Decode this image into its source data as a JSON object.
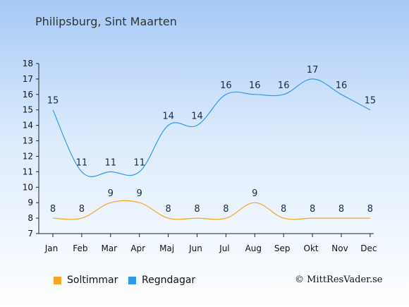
{
  "title": "Philipsburg, Sint Maarten",
  "copyright": "© MittResVader.se",
  "legend": [
    {
      "label": "Soltimmar",
      "color": "#f5a623"
    },
    {
      "label": "Regndagar",
      "color": "#3399e6"
    }
  ],
  "chart_data": {
    "type": "line",
    "categories": [
      "Jan",
      "Feb",
      "Mar",
      "Apr",
      "Maj",
      "Jun",
      "Jul",
      "Aug",
      "Sep",
      "Okt",
      "Nov",
      "Dec"
    ],
    "ylim": [
      7,
      18
    ],
    "yticks": [
      7,
      8,
      9,
      10,
      11,
      12,
      13,
      14,
      15,
      16,
      17,
      18
    ],
    "series": [
      {
        "name": "Regndagar",
        "color": "#3399e6",
        "values": [
          15,
          11,
          11,
          11,
          14,
          14,
          16,
          16,
          16,
          17,
          16,
          15
        ]
      },
      {
        "name": "Soltimmar",
        "color": "#f5a623",
        "values": [
          8,
          8,
          9,
          9,
          8,
          8,
          8,
          9,
          8,
          8,
          8,
          8
        ]
      }
    ]
  }
}
